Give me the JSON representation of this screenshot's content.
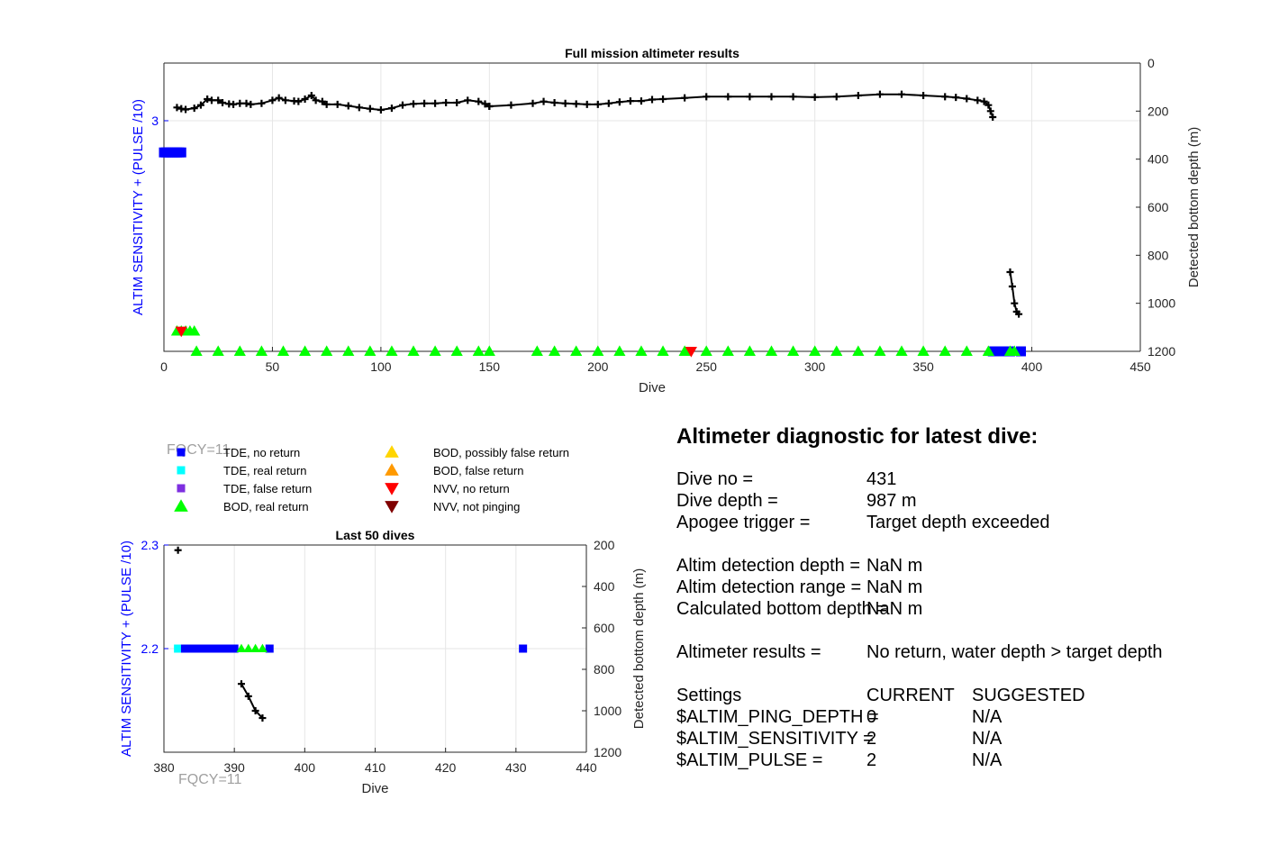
{
  "colors": {
    "tde_no_return": "#0000ff",
    "tde_real_return": "#00ffff",
    "tde_false_return": "#7e2fe0",
    "bod_real_return": "#00ff00",
    "bod_possibly_false": "#ffd500",
    "bod_false": "#ff9900",
    "nvv_no_return": "#ff0000",
    "nvv_not_pinging": "#800000",
    "depth_trace": "#000000",
    "left_axis": "#0000ff"
  },
  "chart_data": [
    {
      "id": "full-mission",
      "type": "scatter",
      "title": "Full mission altimeter results",
      "xlabel": "Dive",
      "ylabel_left": "ALTIM SENSITIVITY + (PULSE /10)",
      "ylabel_right": "Detected bottom depth (m)",
      "xlim": [
        0,
        450
      ],
      "ylim_left": [
        2.2,
        3.2
      ],
      "ylim_right": [
        0,
        1200
      ],
      "right_reversed": true,
      "grid": true,
      "xticks": [
        "0",
        "50",
        "100",
        "150",
        "200",
        "250",
        "300",
        "350",
        "400",
        "450"
      ],
      "yticks_left": [
        "3"
      ],
      "yticks_right": [
        "0",
        "200",
        "400",
        "600",
        "800",
        "1000",
        "1200"
      ],
      "yticks_left_values": [
        3
      ],
      "xticks_values": [
        0,
        50,
        100,
        150,
        200,
        250,
        300,
        350,
        400,
        450
      ],
      "yticks_right_values": [
        0,
        200,
        400,
        600,
        800,
        1000,
        1200
      ],
      "depth_series": [
        {
          "name": "segment-1",
          "x": [
            6,
            8,
            10,
            14,
            17,
            20,
            22,
            25,
            27,
            30,
            32,
            35,
            38,
            40,
            45,
            50,
            53,
            56,
            60,
            62,
            65,
            68,
            70,
            73,
            75,
            80,
            85,
            90,
            95,
            100,
            105,
            110,
            115,
            120,
            125,
            130,
            135,
            140,
            145,
            148,
            150
          ],
          "y": [
            185,
            190,
            193,
            188,
            175,
            150,
            155,
            155,
            165,
            170,
            172,
            168,
            168,
            172,
            168,
            155,
            145,
            155,
            158,
            160,
            150,
            135,
            155,
            160,
            172,
            172,
            178,
            185,
            190,
            195,
            188,
            175,
            170,
            168,
            168,
            165,
            165,
            155,
            160,
            170,
            180
          ]
        },
        {
          "name": "segment-2",
          "x": [
            150,
            160,
            170,
            175,
            180,
            185,
            190,
            195,
            200,
            205,
            210,
            215,
            220,
            225,
            230,
            240,
            250,
            260,
            270,
            280,
            290,
            300,
            310,
            320,
            330,
            340,
            350,
            360,
            365,
            370,
            375,
            378,
            380,
            381,
            382
          ],
          "y": [
            180,
            175,
            168,
            160,
            165,
            168,
            170,
            172,
            172,
            168,
            162,
            158,
            158,
            152,
            150,
            145,
            140,
            140,
            140,
            140,
            140,
            142,
            140,
            135,
            130,
            130,
            135,
            140,
            143,
            148,
            155,
            160,
            175,
            200,
            225
          ]
        },
        {
          "name": "segment-3",
          "x": [
            390,
            391,
            392,
            393,
            394
          ],
          "y": [
            870,
            930,
            1000,
            1035,
            1045
          ]
        }
      ],
      "markers": [
        {
          "name": "TDE, no return",
          "shape": "square",
          "x": [
            0,
            1,
            2,
            3,
            4,
            5,
            6,
            7,
            8
          ],
          "y": [
            2.89,
            2.89,
            2.89,
            2.89,
            2.89,
            2.89,
            2.89,
            2.89,
            2.89
          ]
        },
        {
          "name": "TDE, no return",
          "shape": "square",
          "x": [
            382,
            384,
            386,
            388,
            390,
            395
          ],
          "y": [
            2.2,
            2.2,
            2.2,
            2.2,
            2.2,
            2.2
          ]
        },
        {
          "name": "BOD, real return",
          "shape": "triangle-up",
          "x": [
            6,
            8,
            10,
            12,
            14
          ],
          "y": [
            2.27,
            2.27,
            2.27,
            2.27,
            2.27
          ]
        },
        {
          "name": "BOD, real return",
          "shape": "triangle-up",
          "x": [
            15,
            25,
            35,
            45,
            55,
            65,
            75,
            85,
            95,
            105,
            115,
            125,
            135,
            145,
            150,
            172,
            180,
            190,
            200,
            210,
            220,
            230,
            240,
            250,
            260,
            270,
            280,
            290,
            300,
            310,
            320,
            330,
            340,
            350,
            360,
            370,
            380,
            390,
            392
          ],
          "y": [
            2.2,
            2.2,
            2.2,
            2.2,
            2.2,
            2.2,
            2.2,
            2.2,
            2.2,
            2.2,
            2.2,
            2.2,
            2.2,
            2.2,
            2.2,
            2.2,
            2.2,
            2.2,
            2.2,
            2.2,
            2.2,
            2.2,
            2.2,
            2.2,
            2.2,
            2.2,
            2.2,
            2.2,
            2.2,
            2.2,
            2.2,
            2.2,
            2.2,
            2.2,
            2.2,
            2.2,
            2.2,
            2.2,
            2.2
          ]
        },
        {
          "name": "NVV, no return",
          "shape": "triangle-down",
          "x": [
            8,
            243
          ],
          "y": [
            2.27,
            2.2
          ]
        }
      ]
    },
    {
      "id": "last-50",
      "type": "scatter",
      "title": "Last 50 dives",
      "xlabel": "Dive",
      "ylabel_left": "ALTIM SENSITIVITY + (PULSE /10)",
      "ylabel_right": "Detected bottom depth (m)",
      "xlim": [
        380,
        440
      ],
      "ylim_left": [
        2.1,
        2.3
      ],
      "ylim_right": [
        200,
        1200
      ],
      "right_reversed": true,
      "grid": true,
      "xticks": [
        "380",
        "390",
        "400",
        "410",
        "420",
        "430",
        "440"
      ],
      "yticks_left": [
        "2.3",
        "2.2"
      ],
      "yticks_right": [
        "200",
        "400",
        "600",
        "800",
        "1000",
        "1200"
      ],
      "xticks_values": [
        380,
        390,
        400,
        410,
        420,
        430,
        440
      ],
      "yticks_left_values": [
        2.3,
        2.2
      ],
      "yticks_right_values": [
        200,
        400,
        600,
        800,
        1000,
        1200
      ],
      "annotation": "FQCY=11",
      "depth_series": [
        {
          "name": "point",
          "x": [
            382
          ],
          "y": [
            225
          ]
        },
        {
          "name": "segment",
          "x": [
            391,
            392,
            393,
            394
          ],
          "y": [
            870,
            930,
            1000,
            1035
          ]
        }
      ],
      "markers": [
        {
          "name": "TDE, real return",
          "shape": "square",
          "x": [
            382
          ],
          "y": [
            2.2
          ]
        },
        {
          "name": "TDE, no return",
          "shape": "square",
          "x": [
            383,
            384,
            385,
            386,
            387,
            388,
            389,
            390,
            395,
            431
          ],
          "y": [
            2.2,
            2.2,
            2.2,
            2.2,
            2.2,
            2.2,
            2.2,
            2.2,
            2.2,
            2.2
          ]
        },
        {
          "name": "BOD, real return",
          "shape": "triangle-up",
          "x": [
            391,
            392,
            393,
            394
          ],
          "y": [
            2.2,
            2.2,
            2.2,
            2.2
          ]
        }
      ]
    }
  ],
  "legend": {
    "annotation": "FQCY=11",
    "items": [
      {
        "label": "TDE, no return",
        "shape": "square",
        "color": "#0000ff"
      },
      {
        "label": "TDE, real return",
        "shape": "square",
        "color": "#00ffff"
      },
      {
        "label": "TDE, false return",
        "shape": "square",
        "color": "#7e2fe0"
      },
      {
        "label": "BOD, real return",
        "shape": "triangle-up",
        "color": "#00ff00"
      },
      {
        "label": "BOD, possibly false return",
        "shape": "triangle-up",
        "color": "#ffd500"
      },
      {
        "label": "BOD, false return",
        "shape": "triangle-up",
        "color": "#ff9900"
      },
      {
        "label": "NVV, no return",
        "shape": "triangle-down",
        "color": "#ff0000"
      },
      {
        "label": "NVV, not pinging",
        "shape": "triangle-down",
        "color": "#800000"
      }
    ]
  },
  "diagnostic": {
    "title": "Altimeter diagnostic for latest dive:",
    "rows": [
      {
        "label": "Dive no =",
        "value": "431"
      },
      {
        "label": "Dive depth =",
        "value": "987 m"
      },
      {
        "label": "Apogee trigger =",
        "value": "Target depth exceeded"
      },
      {
        "label": "Altim detection depth =",
        "value": "NaN m"
      },
      {
        "label": "Altim detection range =",
        "value": "NaN m"
      },
      {
        "label": "Calculated bottom depth =",
        "value": "NaN m"
      },
      {
        "label": "Altimeter results =",
        "value": "No return, water depth > target depth"
      }
    ],
    "settings": {
      "header_label": "Settings",
      "header_current": "CURRENT",
      "header_suggested": "SUGGESTED",
      "rows": [
        {
          "label": "$ALTIM_PING_DEPTH =",
          "current": "0",
          "suggested": "N/A"
        },
        {
          "label": "$ALTIM_SENSITIVITY =",
          "current": "2",
          "suggested": "N/A"
        },
        {
          "label": "$ALTIM_PULSE =",
          "current": "2",
          "suggested": "N/A"
        }
      ]
    }
  }
}
